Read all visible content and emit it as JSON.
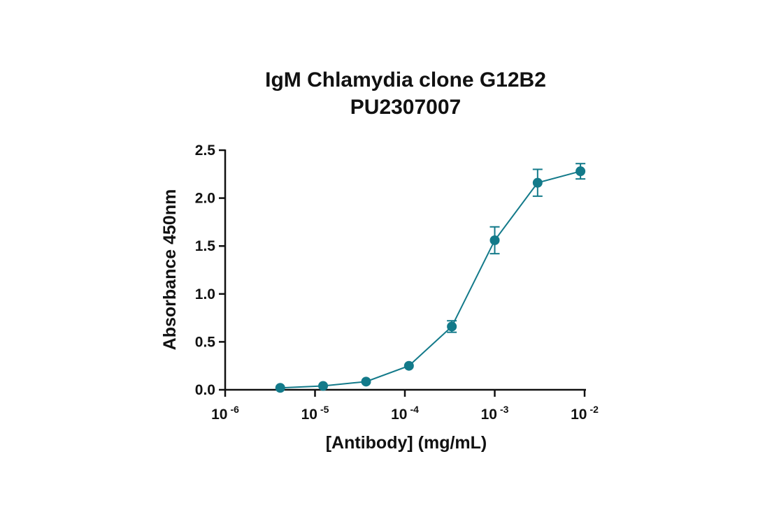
{
  "chart_data": {
    "type": "line",
    "title": [
      "IgM Chlamydia clone G12B2",
      "PU2307007"
    ],
    "xlabel": "[Antibody] (mg/mL)",
    "ylabel": "Absorbance 450nm",
    "x_scale": "log10",
    "xlim": [
      1e-06,
      0.01
    ],
    "ylim": [
      0,
      2.5
    ],
    "x_ticks": [
      {
        "base": "10",
        "exp": "-6"
      },
      {
        "base": "10",
        "exp": "-5"
      },
      {
        "base": "10",
        "exp": "-4"
      },
      {
        "base": "10",
        "exp": "-3"
      },
      {
        "base": "10",
        "exp": "-2"
      }
    ],
    "y_ticks": [
      "0.0",
      "0.5",
      "1.0",
      "1.5",
      "2.0",
      "2.5"
    ],
    "grid": false,
    "legend": "none",
    "series": [
      {
        "color": "#137a8a",
        "points": [
          {
            "x": 4.1e-06,
            "y": 0.02,
            "err": 0.0
          },
          {
            "x": 1.23e-05,
            "y": 0.04,
            "err": 0.0
          },
          {
            "x": 3.7e-05,
            "y": 0.085,
            "err": 0.0
          },
          {
            "x": 0.000111,
            "y": 0.25,
            "err": 0.0
          },
          {
            "x": 0.000333,
            "y": 0.66,
            "err": 0.06
          },
          {
            "x": 0.001,
            "y": 1.56,
            "err": 0.14
          },
          {
            "x": 0.003,
            "y": 2.16,
            "err": 0.14
          },
          {
            "x": 0.009,
            "y": 2.28,
            "err": 0.08
          }
        ]
      }
    ]
  }
}
